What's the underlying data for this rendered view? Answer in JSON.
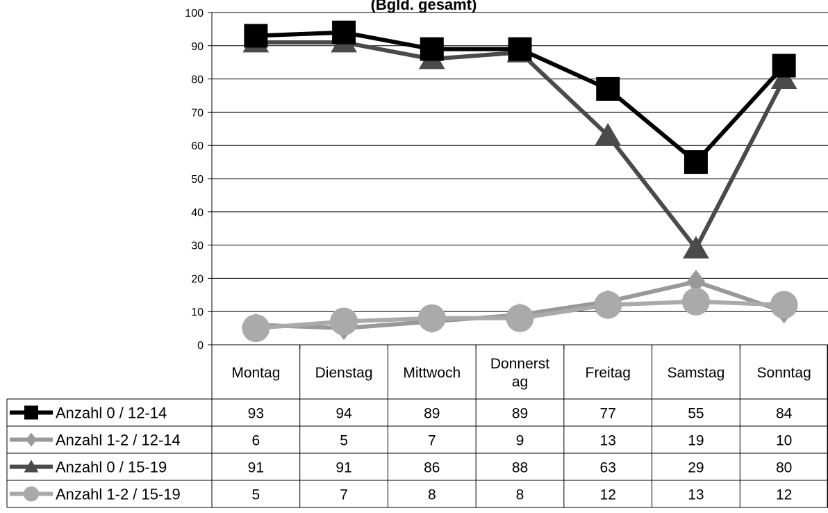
{
  "chart_data": {
    "type": "line",
    "title": "(Bgld. gesamt)",
    "xlabel": "",
    "ylabel": "",
    "ylim": [
      0,
      100
    ],
    "yticks": [
      0,
      10,
      20,
      30,
      40,
      50,
      60,
      70,
      80,
      90,
      100
    ],
    "grid": true,
    "legend_placement": "bottom data table",
    "categories": [
      "Montag",
      "Dienstag",
      "Mittwoch",
      "Donnerstag",
      "Freitag",
      "Samstag",
      "Sonntag"
    ],
    "category_display": [
      [
        "Montag"
      ],
      [
        "Dienstag"
      ],
      [
        "Mittwoch"
      ],
      [
        "Donnerst",
        "ag"
      ],
      [
        "Freitag"
      ],
      [
        "Samstag"
      ],
      [
        "Sonntag"
      ]
    ],
    "series": [
      {
        "name": "Anzahl 0 / 12-14",
        "values": [
          93,
          94,
          89,
          89,
          77,
          55,
          84
        ],
        "color": "#000000",
        "marker": "square"
      },
      {
        "name": "Anzahl 1-2 / 12-14",
        "values": [
          6,
          5,
          7,
          9,
          13,
          19,
          10
        ],
        "color": "#999999",
        "marker": "diamond"
      },
      {
        "name": "Anzahl 0 / 15-19",
        "values": [
          91,
          91,
          86,
          88,
          63,
          29,
          80
        ],
        "color": "#4a4a4a",
        "marker": "triangle"
      },
      {
        "name": "Anzahl 1-2 / 15-19",
        "values": [
          5,
          7,
          8,
          8,
          12,
          13,
          12
        ],
        "color": "#aaaaaa",
        "marker": "circle"
      }
    ]
  }
}
